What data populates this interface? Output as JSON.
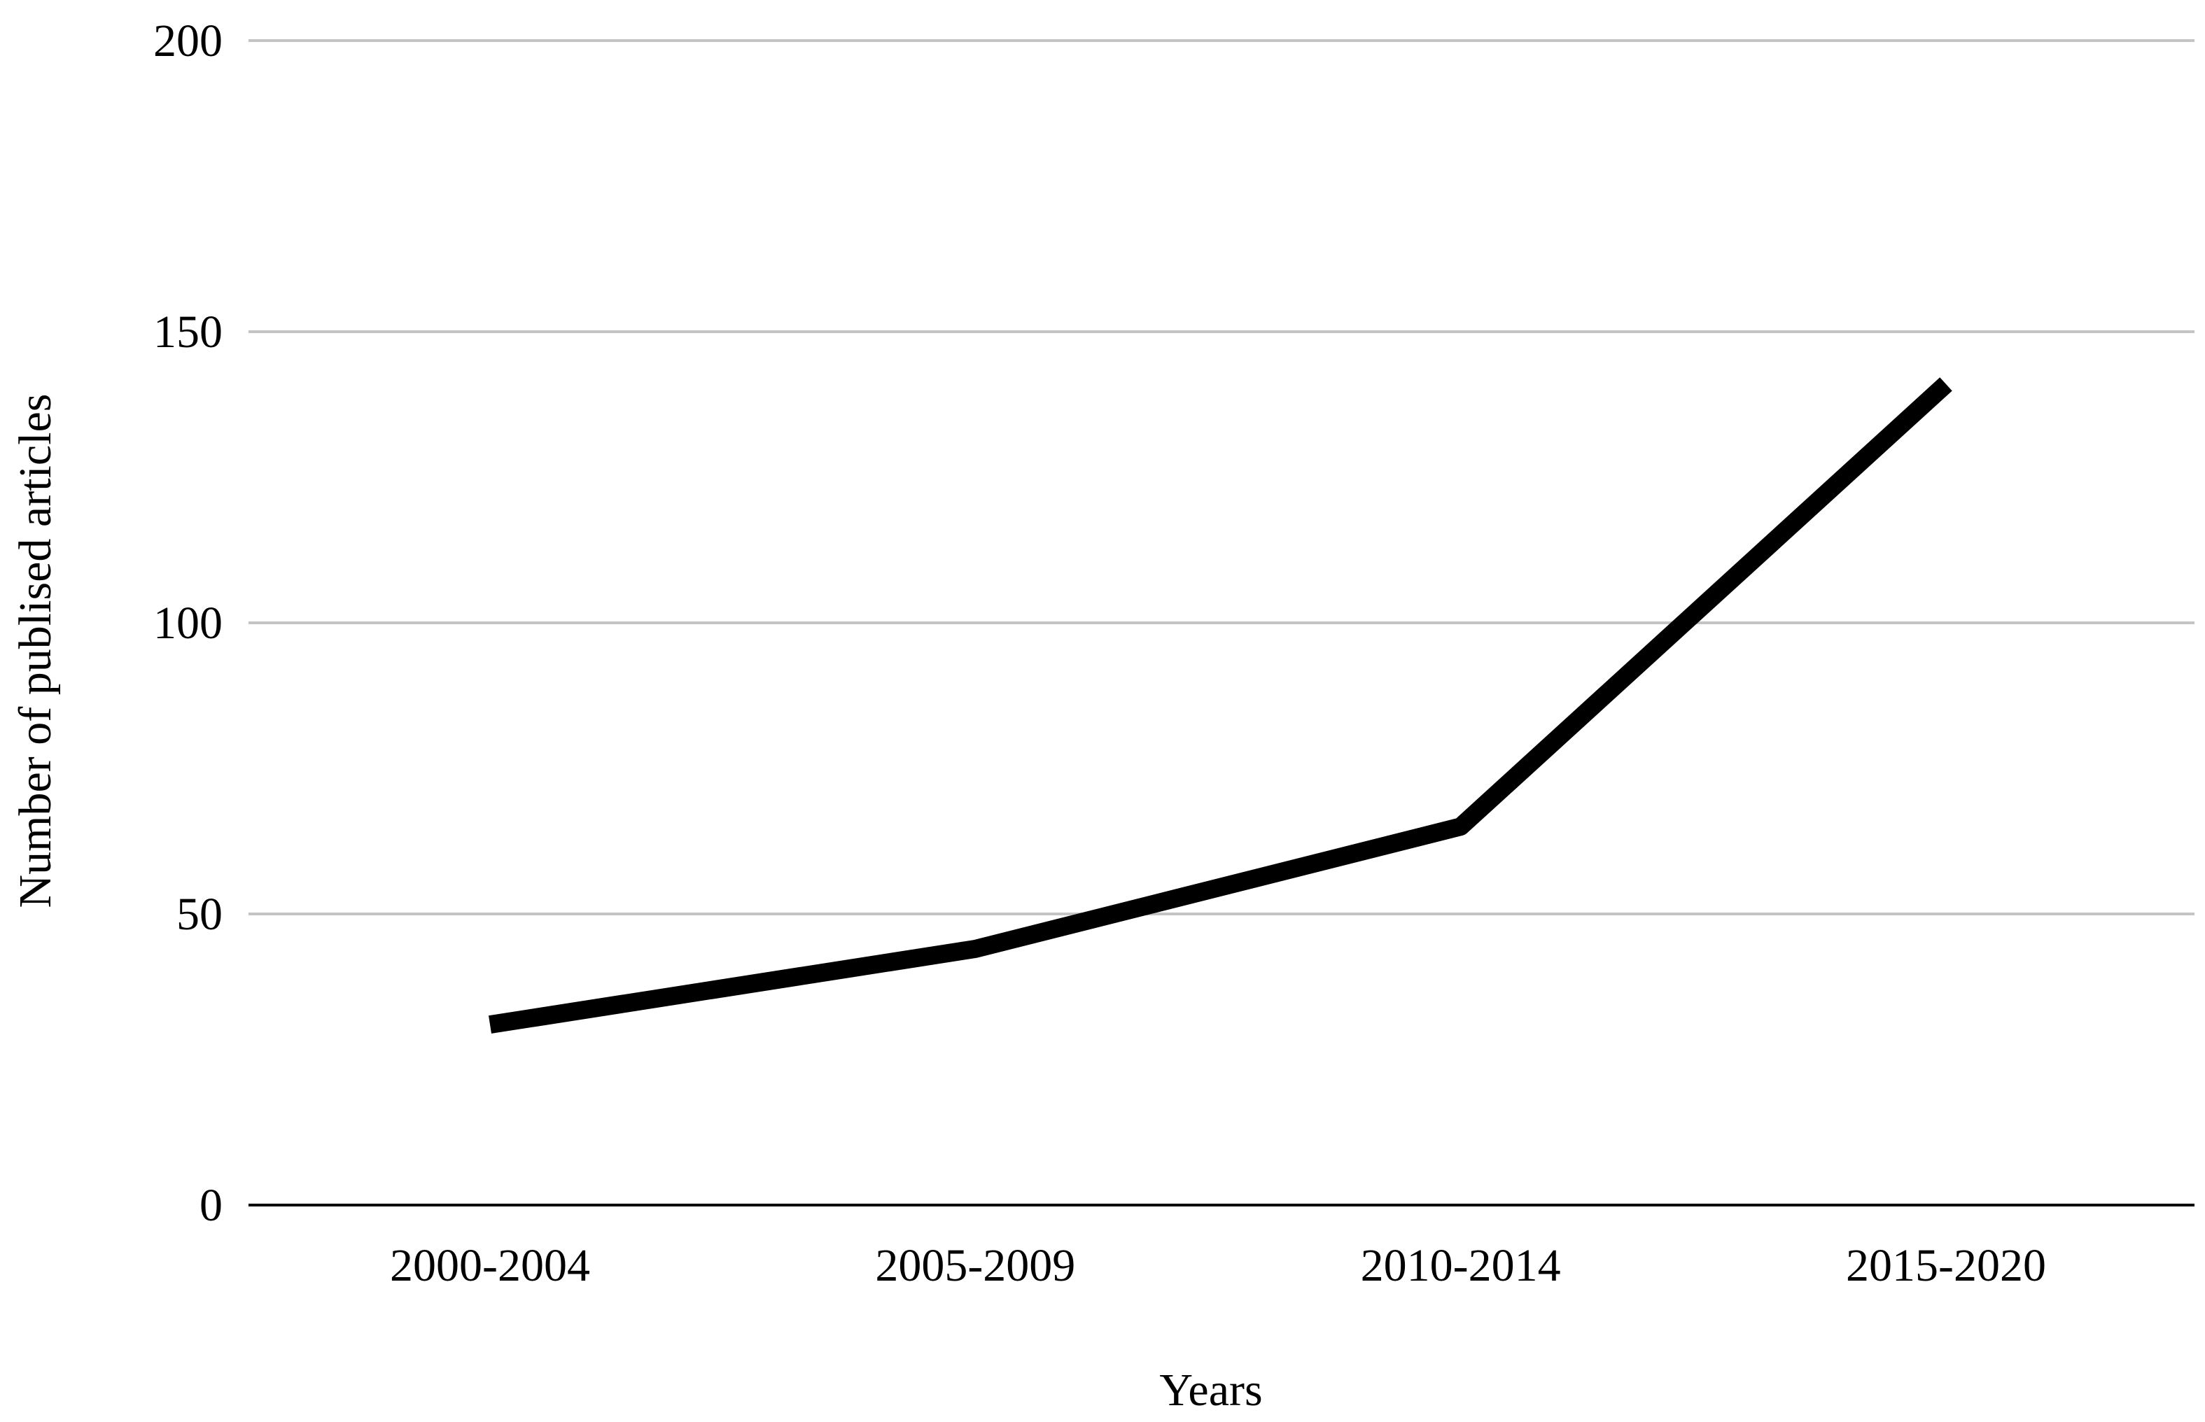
{
  "chart_data": {
    "type": "line",
    "title": "",
    "xlabel": "Years",
    "ylabel": "Number of publised articles",
    "categories": [
      "2000-2004",
      "2005-2009",
      "2010-2014",
      "2015-2020"
    ],
    "series": [
      {
        "values": [
          31,
          44,
          65,
          141
        ]
      }
    ],
    "ylim": [
      0,
      200
    ],
    "yticks": [
      "0",
      "50",
      "100",
      "150",
      "200"
    ],
    "grid": true,
    "legend": "none",
    "colors": {
      "line": "#000000",
      "grid": "#c4c4c4",
      "axis": "#000000"
    }
  }
}
